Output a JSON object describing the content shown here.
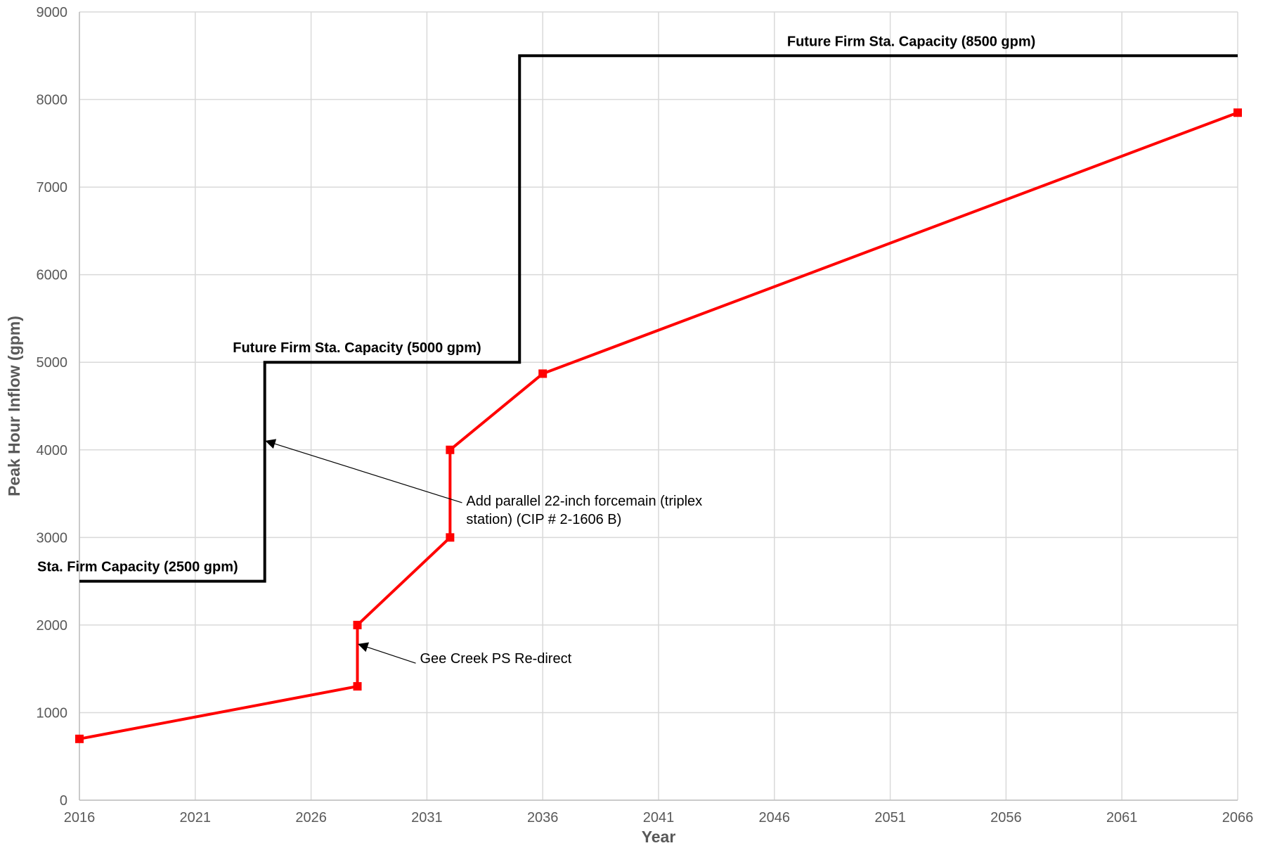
{
  "chart_data": {
    "type": "line",
    "title": "",
    "xlabel": "Year",
    "ylabel": "Peak Hour Inflow (gpm)",
    "xlim": [
      2016,
      2066
    ],
    "ylim": [
      0,
      9000
    ],
    "xticks": [
      2016,
      2021,
      2026,
      2031,
      2036,
      2041,
      2046,
      2051,
      2056,
      2061,
      2066
    ],
    "yticks": [
      0,
      1000,
      2000,
      3000,
      4000,
      5000,
      6000,
      7000,
      8000,
      9000
    ],
    "grid": true,
    "series": [
      {
        "name": "",
        "color": "#ff0000",
        "marker": "square",
        "points": [
          [
            2016,
            700
          ],
          [
            2028,
            1300
          ],
          [
            2028,
            2000
          ],
          [
            2032,
            3000
          ],
          [
            2032,
            4000
          ],
          [
            2036,
            4870
          ],
          [
            2066,
            7850
          ]
        ]
      },
      {
        "name": "",
        "color": "#000000",
        "marker": "none",
        "points": [
          [
            2016,
            2500
          ],
          [
            2024,
            2500
          ],
          [
            2024,
            5000
          ],
          [
            2035,
            5000
          ],
          [
            2035,
            8500
          ],
          [
            2066,
            8500
          ]
        ]
      }
    ],
    "annotations": [
      {
        "text": "Sta. Firm Capacity (2500 gpm)",
        "bold": true,
        "x": 2016,
        "y": 2500,
        "anchor": "above-left"
      },
      {
        "text": "Future Firm Sta. Capacity (5000 gpm)",
        "bold": true,
        "x": 2024,
        "y": 5000,
        "anchor": "above"
      },
      {
        "text": "Future Firm Sta. Capacity (8500 gpm)",
        "bold": true,
        "x": 2051,
        "y": 8500,
        "anchor": "above"
      },
      {
        "text_lines": [
          "Add parallel 22-inch forcemain (triplex",
          "station) (CIP # 2-1606 B)"
        ],
        "bold": false,
        "arrow_to": [
          2024,
          4100
        ],
        "label_at": [
          2032.7,
          3300
        ]
      },
      {
        "text": "Gee Creek PS Re-direct",
        "bold": false,
        "arrow_to": [
          2028,
          1780
        ],
        "label_at": [
          2030.7,
          1500
        ]
      }
    ]
  }
}
